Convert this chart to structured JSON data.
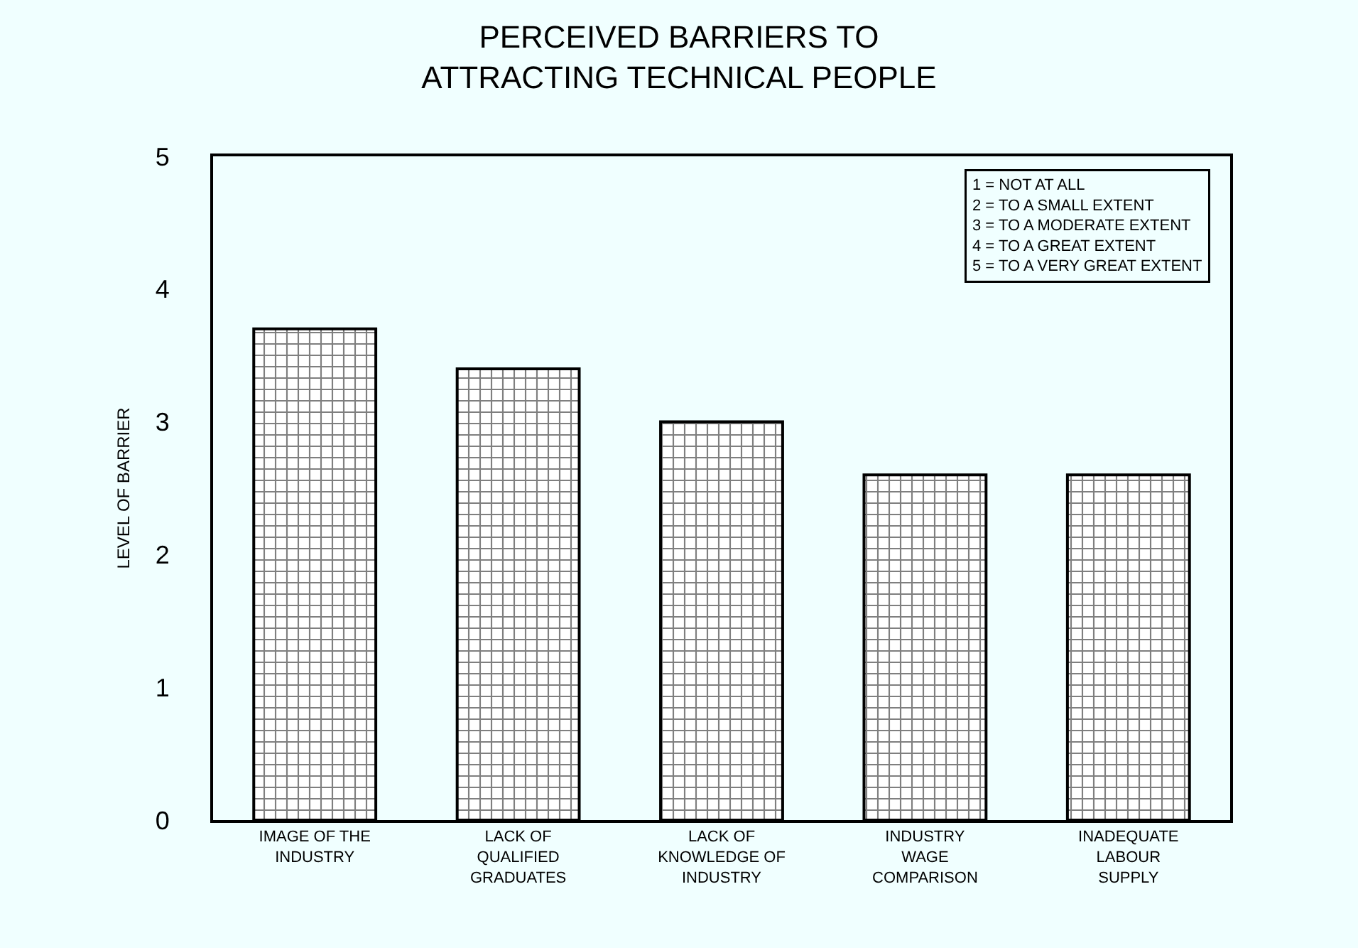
{
  "chart_data": {
    "type": "bar",
    "title": "PERCEIVED BARRIERS TO\nATTRACTING TECHNICAL PEOPLE",
    "ylabel": "LEVEL OF BARRIER",
    "categories": [
      "IMAGE OF THE\nINDUSTRY",
      "LACK OF\nQUALIFIED\nGRADUATES",
      "LACK OF\nKNOWLEDGE OF\nINDUSTRY",
      "INDUSTRY\nWAGE\nCOMPARISON",
      "INADEQUATE\nLABOUR\nSUPPLY"
    ],
    "values": [
      3.7,
      3.4,
      3.0,
      2.6,
      2.6
    ],
    "color": "#000000",
    "ylim": [
      0,
      5
    ],
    "yticks": [
      0,
      1,
      2,
      3,
      4,
      5
    ],
    "grid": false,
    "legend": false,
    "annotations": [
      "1 = NOT AT ALL\n2 = TO A SMALL EXTENT\n3 = TO A MODERATE EXTENT\n4 = TO A GREAT EXTENT\n5 = TO A VERY GREAT EXTENT"
    ]
  }
}
